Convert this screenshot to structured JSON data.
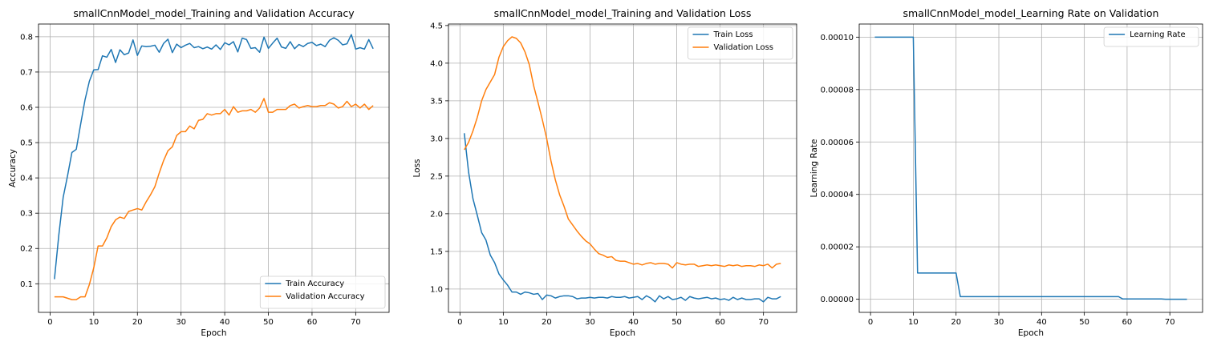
{
  "colors": {
    "blue": "#1f77b4",
    "orange": "#ff7f0e"
  },
  "chart_data": [
    {
      "type": "line",
      "title": "smallCnnModel_model_Training and Validation Accuracy",
      "xlabel": "Epoch",
      "ylabel": "Accuracy",
      "xlim": [
        -2.65,
        77.65
      ],
      "ylim": [
        0.019,
        0.836
      ],
      "xticks": [
        0,
        10,
        20,
        30,
        40,
        50,
        60,
        70
      ],
      "xtick_labels": [
        "0",
        "10",
        "20",
        "30",
        "40",
        "50",
        "60",
        "70"
      ],
      "yticks": [
        0.1,
        0.2,
        0.3,
        0.4,
        0.5,
        0.6,
        0.7,
        0.8
      ],
      "ytick_labels": [
        "0.1",
        "0.2",
        "0.3",
        "0.4",
        "0.5",
        "0.6",
        "0.7",
        "0.8"
      ],
      "grid": true,
      "legend_position": "lower-right",
      "x": [
        1,
        2,
        3,
        4,
        5,
        6,
        7,
        8,
        9,
        10,
        11,
        12,
        13,
        14,
        15,
        16,
        17,
        18,
        19,
        20,
        21,
        22,
        23,
        24,
        25,
        26,
        27,
        28,
        29,
        30,
        31,
        32,
        33,
        34,
        35,
        36,
        37,
        38,
        39,
        40,
        41,
        42,
        43,
        44,
        45,
        46,
        47,
        48,
        49,
        50,
        51,
        52,
        53,
        54,
        55,
        56,
        57,
        58,
        59,
        60,
        61,
        62,
        63,
        64,
        65,
        66,
        67,
        68,
        69,
        70,
        71,
        72,
        73,
        74
      ],
      "series": [
        {
          "name": "Train Accuracy",
          "color": "#1f77b4",
          "values": [
            0.113,
            0.238,
            0.345,
            0.406,
            0.472,
            0.481,
            0.552,
            0.621,
            0.674,
            0.706,
            0.707,
            0.746,
            0.742,
            0.764,
            0.727,
            0.763,
            0.749,
            0.754,
            0.791,
            0.747,
            0.774,
            0.772,
            0.773,
            0.776,
            0.756,
            0.781,
            0.793,
            0.755,
            0.779,
            0.769,
            0.776,
            0.781,
            0.769,
            0.772,
            0.766,
            0.771,
            0.765,
            0.777,
            0.764,
            0.783,
            0.777,
            0.786,
            0.757,
            0.796,
            0.792,
            0.767,
            0.769,
            0.756,
            0.799,
            0.767,
            0.782,
            0.796,
            0.771,
            0.767,
            0.786,
            0.766,
            0.778,
            0.772,
            0.781,
            0.784,
            0.775,
            0.779,
            0.772,
            0.79,
            0.797,
            0.79,
            0.777,
            0.78,
            0.806,
            0.765,
            0.769,
            0.765,
            0.792,
            0.766
          ]
        },
        {
          "name": "Validation Accuracy",
          "color": "#ff7f0e",
          "values": [
            0.063,
            0.063,
            0.063,
            0.059,
            0.055,
            0.055,
            0.063,
            0.063,
            0.098,
            0.145,
            0.207,
            0.207,
            0.23,
            0.262,
            0.281,
            0.289,
            0.285,
            0.305,
            0.309,
            0.313,
            0.309,
            0.332,
            0.352,
            0.375,
            0.414,
            0.449,
            0.477,
            0.488,
            0.52,
            0.531,
            0.531,
            0.547,
            0.539,
            0.563,
            0.566,
            0.582,
            0.578,
            0.582,
            0.582,
            0.594,
            0.578,
            0.602,
            0.586,
            0.59,
            0.59,
            0.594,
            0.586,
            0.598,
            0.625,
            0.586,
            0.586,
            0.594,
            0.594,
            0.594,
            0.605,
            0.609,
            0.598,
            0.602,
            0.605,
            0.602,
            0.602,
            0.605,
            0.605,
            0.613,
            0.609,
            0.598,
            0.602,
            0.617,
            0.602,
            0.609,
            0.598,
            0.609,
            0.594,
            0.605
          ]
        }
      ]
    },
    {
      "type": "line",
      "title": "smallCnnModel_model_Training and Validation Loss",
      "xlabel": "Epoch",
      "ylabel": "Loss",
      "xlim": [
        -2.65,
        77.65
      ],
      "ylim": [
        0.69,
        4.52
      ],
      "xticks": [
        0,
        10,
        20,
        30,
        40,
        50,
        60,
        70
      ],
      "xtick_labels": [
        "0",
        "10",
        "20",
        "30",
        "40",
        "50",
        "60",
        "70"
      ],
      "yticks": [
        1.0,
        1.5,
        2.0,
        2.5,
        3.0,
        3.5,
        4.0,
        4.5
      ],
      "ytick_labels": [
        "1.0",
        "1.5",
        "2.0",
        "2.5",
        "3.0",
        "3.5",
        "4.0",
        "4.5"
      ],
      "grid": true,
      "legend_position": "upper-right",
      "x": [
        1,
        2,
        3,
        4,
        5,
        6,
        7,
        8,
        9,
        10,
        11,
        12,
        13,
        14,
        15,
        16,
        17,
        18,
        19,
        20,
        21,
        22,
        23,
        24,
        25,
        26,
        27,
        28,
        29,
        30,
        31,
        32,
        33,
        34,
        35,
        36,
        37,
        38,
        39,
        40,
        41,
        42,
        43,
        44,
        45,
        46,
        47,
        48,
        49,
        50,
        51,
        52,
        53,
        54,
        55,
        56,
        57,
        58,
        59,
        60,
        61,
        62,
        63,
        64,
        65,
        66,
        67,
        68,
        69,
        70,
        71,
        72,
        73,
        74
      ],
      "series": [
        {
          "name": "Train Loss",
          "color": "#1f77b4",
          "values": [
            3.07,
            2.55,
            2.2,
            1.98,
            1.75,
            1.65,
            1.45,
            1.35,
            1.2,
            1.12,
            1.05,
            0.96,
            0.96,
            0.93,
            0.96,
            0.95,
            0.93,
            0.94,
            0.86,
            0.92,
            0.91,
            0.88,
            0.9,
            0.91,
            0.91,
            0.9,
            0.87,
            0.88,
            0.88,
            0.89,
            0.88,
            0.89,
            0.89,
            0.88,
            0.9,
            0.89,
            0.89,
            0.9,
            0.88,
            0.89,
            0.9,
            0.86,
            0.91,
            0.88,
            0.83,
            0.91,
            0.87,
            0.9,
            0.86,
            0.87,
            0.89,
            0.85,
            0.9,
            0.88,
            0.87,
            0.88,
            0.89,
            0.87,
            0.88,
            0.86,
            0.87,
            0.85,
            0.89,
            0.86,
            0.88,
            0.86,
            0.86,
            0.87,
            0.87,
            0.83,
            0.89,
            0.87,
            0.87,
            0.9
          ]
        },
        {
          "name": "Validation Loss",
          "color": "#ff7f0e",
          "values": [
            2.85,
            2.95,
            3.1,
            3.28,
            3.5,
            3.65,
            3.75,
            3.85,
            4.08,
            4.22,
            4.3,
            4.35,
            4.33,
            4.27,
            4.15,
            3.98,
            3.7,
            3.48,
            3.25,
            3.0,
            2.7,
            2.45,
            2.25,
            2.1,
            1.93,
            1.85,
            1.77,
            1.7,
            1.64,
            1.6,
            1.53,
            1.47,
            1.45,
            1.42,
            1.43,
            1.38,
            1.37,
            1.37,
            1.35,
            1.33,
            1.34,
            1.32,
            1.34,
            1.35,
            1.33,
            1.34,
            1.34,
            1.33,
            1.28,
            1.35,
            1.33,
            1.32,
            1.33,
            1.33,
            1.3,
            1.31,
            1.32,
            1.31,
            1.32,
            1.31,
            1.3,
            1.32,
            1.31,
            1.32,
            1.3,
            1.31,
            1.31,
            1.3,
            1.32,
            1.31,
            1.33,
            1.28,
            1.33,
            1.34
          ]
        }
      ]
    },
    {
      "type": "line",
      "title": "smallCnnModel_model_Learning Rate on Validation",
      "xlabel": "Epoch",
      "ylabel": "Learning Rate",
      "xlim": [
        -2.65,
        77.65
      ],
      "ylim": [
        -5e-06,
        0.000105
      ],
      "xticks": [
        0,
        10,
        20,
        30,
        40,
        50,
        60,
        70
      ],
      "xtick_labels": [
        "0",
        "10",
        "20",
        "30",
        "40",
        "50",
        "60",
        "70"
      ],
      "yticks": [
        0,
        2e-05,
        4e-05,
        6e-05,
        8e-05,
        0.0001
      ],
      "ytick_labels": [
        "0.00000",
        "0.00002",
        "0.00004",
        "0.00006",
        "0.00008",
        "0.00010"
      ],
      "grid": true,
      "legend_position": "upper-right",
      "x": [
        1,
        10,
        11,
        20,
        21,
        58,
        59,
        68,
        69,
        74
      ],
      "series": [
        {
          "name": "Learning Rate",
          "color": "#1f77b4",
          "values": [
            0.0001,
            0.0001,
            1e-05,
            1e-05,
            1e-06,
            1e-06,
            1e-07,
            1e-07,
            1e-08,
            1e-08
          ]
        }
      ]
    }
  ]
}
